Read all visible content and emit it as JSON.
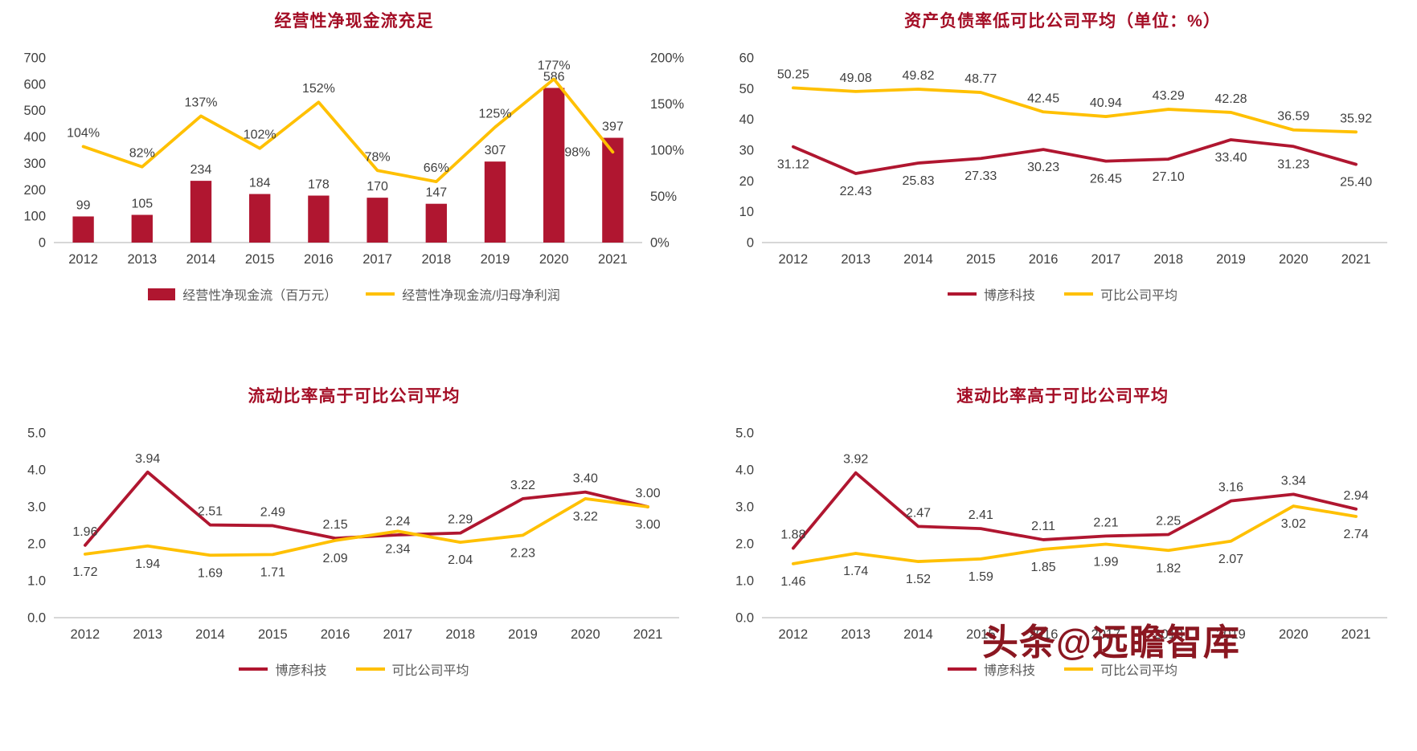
{
  "colors": {
    "primary": "#B01630",
    "secondary": "#FFC000",
    "title": "#A40E26",
    "axis_text": "#404040",
    "label_text": "#3F3F3F",
    "axis_line": "#BFBFBF",
    "legend_text": "#595959",
    "watermark": "#8B1721"
  },
  "watermark": "头条@远瞻智库",
  "chart_data": [
    {
      "id": "operating-cash-flow",
      "type": "bar",
      "title": "经营性净现金流充足",
      "categories": [
        "2012",
        "2013",
        "2014",
        "2015",
        "2016",
        "2017",
        "2018",
        "2019",
        "2020",
        "2021"
      ],
      "left_axis": {
        "min": 0,
        "max": 700,
        "step": 100,
        "tick_format": "int"
      },
      "right_axis": {
        "min": 0,
        "max": 200,
        "step": 50,
        "tick_format": "percent"
      },
      "grid": false,
      "legend_position": "bottom",
      "series": [
        {
          "name": "经营性净现金流（百万元）",
          "kind": "bar",
          "axis": "left",
          "color": "primary",
          "values": [
            99,
            105,
            234,
            184,
            178,
            170,
            147,
            307,
            586,
            397
          ],
          "labels": [
            "99",
            "105",
            "234",
            "184",
            "178",
            "170",
            "147",
            "307",
            "586",
            "397"
          ],
          "label_side": "above"
        },
        {
          "name": "经营性净现金流/归母净利润",
          "kind": "line",
          "axis": "right",
          "color": "secondary",
          "values": [
            104,
            82,
            137,
            102,
            152,
            78,
            66,
            125,
            177,
            98
          ],
          "labels": [
            "104%",
            "82%",
            "137%",
            "102%",
            "152%",
            "78%",
            "66%",
            "125%",
            "177%",
            "98%"
          ],
          "label_side": "above",
          "label_overrides": {
            "9": {
              "dx": -44,
              "dy": 17
            }
          }
        }
      ]
    },
    {
      "id": "debt-ratio",
      "type": "line",
      "title": "资产负债率低可比公司平均（单位：%）",
      "categories": [
        "2012",
        "2013",
        "2014",
        "2015",
        "2016",
        "2017",
        "2018",
        "2019",
        "2020",
        "2021"
      ],
      "left_axis": {
        "min": 0,
        "max": 60,
        "step": 10,
        "tick_format": "int"
      },
      "grid": false,
      "legend_position": "bottom",
      "series": [
        {
          "name": "博彦科技",
          "kind": "line",
          "axis": "left",
          "color": "primary",
          "values": [
            31.12,
            22.43,
            25.83,
            27.33,
            30.23,
            26.45,
            27.1,
            33.4,
            31.23,
            25.4
          ],
          "labels": [
            "31.12",
            "22.43",
            "25.83",
            "27.33",
            "30.23",
            "26.45",
            "27.10",
            "33.40",
            "31.23",
            "25.40"
          ],
          "label_side": "below"
        },
        {
          "name": "可比公司平均",
          "kind": "line",
          "axis": "left",
          "color": "secondary",
          "values": [
            50.25,
            49.08,
            49.82,
            48.77,
            42.45,
            40.94,
            43.29,
            42.28,
            36.59,
            35.92
          ],
          "labels": [
            "50.25",
            "49.08",
            "49.82",
            "48.77",
            "42.45",
            "40.94",
            "43.29",
            "42.28",
            "36.59",
            "35.92"
          ],
          "label_side": "above"
        }
      ]
    },
    {
      "id": "current-ratio",
      "type": "line",
      "title": "流动比率高于可比公司平均",
      "categories": [
        "2012",
        "2013",
        "2014",
        "2015",
        "2016",
        "2017",
        "2018",
        "2019",
        "2020",
        "2021"
      ],
      "left_axis": {
        "min": 0,
        "max": 5,
        "step": 1,
        "tick_format": "one_decimal"
      },
      "grid": false,
      "legend_position": "bottom",
      "series": [
        {
          "name": "博彦科技",
          "kind": "line",
          "axis": "left",
          "color": "primary",
          "values": [
            1.96,
            3.94,
            2.51,
            2.49,
            2.15,
            2.24,
            2.29,
            3.22,
            3.4,
            3.0
          ],
          "labels": [
            "1.96",
            "3.94",
            "2.51",
            "2.49",
            "2.15",
            "2.24",
            "2.29",
            "3.22",
            "3.40",
            "3.00"
          ],
          "label_side": "above"
        },
        {
          "name": "可比公司平均",
          "kind": "line",
          "axis": "left",
          "color": "secondary",
          "values": [
            1.72,
            1.94,
            1.69,
            1.71,
            2.09,
            2.34,
            2.04,
            2.23,
            3.22,
            3.0
          ],
          "labels": [
            "1.72",
            "1.94",
            "1.69",
            "1.71",
            "2.09",
            "2.34",
            "2.04",
            "2.23",
            "3.22",
            "3.00"
          ],
          "label_side": "below"
        }
      ]
    },
    {
      "id": "quick-ratio",
      "type": "line",
      "title": "速动比率高于可比公司平均",
      "categories": [
        "2012",
        "2013",
        "2014",
        "2015",
        "2016",
        "2017",
        "2018",
        "2019",
        "2020",
        "2021"
      ],
      "left_axis": {
        "min": 0,
        "max": 5,
        "step": 1,
        "tick_format": "one_decimal"
      },
      "grid": false,
      "legend_position": "bottom",
      "series": [
        {
          "name": "博彦科技",
          "kind": "line",
          "axis": "left",
          "color": "primary",
          "values": [
            1.88,
            3.92,
            2.47,
            2.41,
            2.11,
            2.21,
            2.25,
            3.16,
            3.34,
            2.94
          ],
          "labels": [
            "1.88",
            "3.92",
            "2.47",
            "2.41",
            "2.11",
            "2.21",
            "2.25",
            "3.16",
            "3.34",
            "2.94"
          ],
          "label_side": "above"
        },
        {
          "name": "可比公司平均",
          "kind": "line",
          "axis": "left",
          "color": "secondary",
          "values": [
            1.46,
            1.74,
            1.52,
            1.59,
            1.85,
            1.99,
            1.82,
            2.07,
            3.02,
            2.74
          ],
          "labels": [
            "1.46",
            "1.74",
            "1.52",
            "1.59",
            "1.85",
            "1.99",
            "1.82",
            "2.07",
            "3.02",
            "2.74"
          ],
          "label_side": "below"
        }
      ]
    }
  ]
}
